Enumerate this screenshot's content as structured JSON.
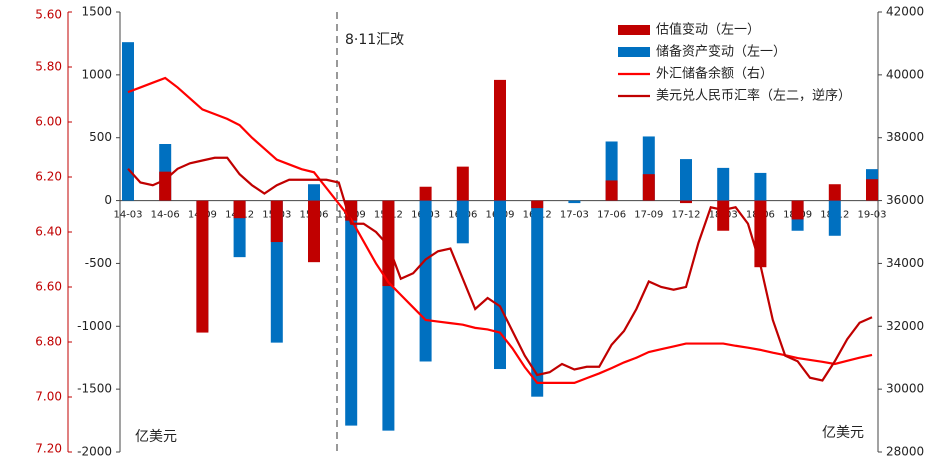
{
  "chart_data": {
    "type": "combo",
    "categories": [
      "14-03",
      null,
      null,
      "14-06",
      null,
      null,
      "14-09",
      null,
      null,
      "14-12",
      null,
      null,
      "15-03",
      null,
      null,
      "15-06",
      null,
      null,
      "15-09",
      null,
      null,
      "15-12",
      null,
      null,
      "16-03",
      null,
      null,
      "16-06",
      null,
      null,
      "16-09",
      null,
      null,
      "16-12",
      null,
      null,
      "17-03",
      null,
      null,
      "17-06",
      null,
      null,
      "17-09",
      null,
      null,
      "17-12",
      null,
      null,
      "18-03",
      null,
      null,
      "18-06",
      null,
      null,
      "18-09",
      null,
      null,
      "18-12",
      null,
      null,
      "19-03"
    ],
    "series": [
      {
        "name": "估值变动（左一）",
        "type": "bar",
        "color": "#c00000",
        "axis": "y",
        "values": [
          0,
          null,
          null,
          230,
          null,
          null,
          -1050,
          null,
          null,
          -140,
          null,
          null,
          -330,
          null,
          null,
          -490,
          null,
          null,
          -160,
          null,
          null,
          -680,
          null,
          null,
          110,
          null,
          null,
          270,
          null,
          null,
          960,
          null,
          null,
          -60,
          null,
          null,
          0,
          null,
          null,
          160,
          null,
          null,
          210,
          null,
          null,
          -20,
          null,
          null,
          -240,
          null,
          null,
          -530,
          null,
          null,
          -150,
          null,
          null,
          130,
          null,
          null,
          170
        ]
      },
      {
        "name": "储备资产变动（左一）",
        "type": "bar",
        "color": "#0070c0",
        "axis": "y",
        "values": [
          1260,
          null,
          null,
          450,
          null,
          null,
          -1040,
          null,
          null,
          -450,
          null,
          null,
          -1130,
          null,
          null,
          130,
          null,
          null,
          -1790,
          null,
          null,
          -1830,
          null,
          null,
          -1280,
          null,
          null,
          -340,
          null,
          null,
          -1340,
          null,
          null,
          -1560,
          null,
          null,
          -20,
          null,
          null,
          470,
          null,
          null,
          510,
          null,
          null,
          330,
          null,
          null,
          260,
          null,
          null,
          220,
          null,
          null,
          -240,
          null,
          null,
          -280,
          null,
          null,
          250
        ]
      },
      {
        "name": "外汇储备余额（右）",
        "type": "line",
        "color": "#ff0000",
        "axis": "y2",
        "values": [
          39450,
          39600,
          39750,
          39900,
          39600,
          39250,
          38900,
          38750,
          38600,
          38400,
          38000,
          37650,
          37300,
          37150,
          37000,
          36900,
          36400,
          35900,
          35400,
          34700,
          34000,
          33400,
          33000,
          32600,
          32200,
          32150,
          32100,
          32050,
          31950,
          31900,
          31800,
          31300,
          30700,
          30200,
          30200,
          30200,
          30200,
          30350,
          30500,
          30670,
          30850,
          31000,
          31180,
          31270,
          31360,
          31450,
          31450,
          31450,
          31450,
          31380,
          31320,
          31250,
          31160,
          31080,
          30990,
          30930,
          30870,
          30800,
          30900,
          31000,
          31090
        ]
      },
      {
        "name": "美元兑人民币汇率（左二，逆序）",
        "type": "line",
        "color": "#c00000",
        "axis": "y3",
        "values": [
          6.17,
          6.22,
          6.23,
          6.21,
          6.17,
          6.15,
          6.14,
          6.13,
          6.13,
          6.19,
          6.23,
          6.26,
          6.23,
          6.21,
          6.21,
          6.21,
          6.21,
          6.22,
          6.37,
          6.37,
          6.4,
          6.45,
          6.57,
          6.55,
          6.5,
          6.47,
          6.46,
          6.57,
          6.68,
          6.64,
          6.67,
          6.76,
          6.85,
          6.92,
          6.91,
          6.88,
          6.9,
          6.89,
          6.89,
          6.81,
          6.76,
          6.68,
          6.58,
          6.6,
          6.61,
          6.6,
          6.44,
          6.31,
          6.32,
          6.31,
          6.37,
          6.52,
          6.72,
          6.85,
          6.87,
          6.93,
          6.94,
          6.87,
          6.79,
          6.73,
          6.71
        ]
      }
    ],
    "ylim": [
      -2000,
      1500
    ],
    "yticks": [
      -2000,
      -1500,
      -1000,
      -500,
      0,
      500,
      1000,
      1500
    ],
    "y2lim": [
      28000,
      42000
    ],
    "y2ticks": [
      28000,
      30000,
      32000,
      34000,
      36000,
      38000,
      40000,
      42000
    ],
    "y3lim": [
      7.2,
      5.6
    ],
    "y3ticks": [
      {
        "value": 7.2,
        "label": "7.20"
      },
      {
        "value": 7.0,
        "label": "7.00"
      },
      {
        "value": 6.8,
        "label": "6.80"
      },
      {
        "value": 6.6,
        "label": "6.60"
      },
      {
        "value": 6.4,
        "label": "6.40"
      },
      {
        "value": 6.2,
        "label": "6.20"
      },
      {
        "value": 6.0,
        "label": "6.00"
      },
      {
        "value": 5.8,
        "label": "5.80"
      },
      {
        "value": 5.6,
        "label": "5.60"
      }
    ],
    "annotations": [
      "8·11汇改",
      "亿美元",
      "亿美元"
    ],
    "legend": "upper right",
    "grid": false
  }
}
